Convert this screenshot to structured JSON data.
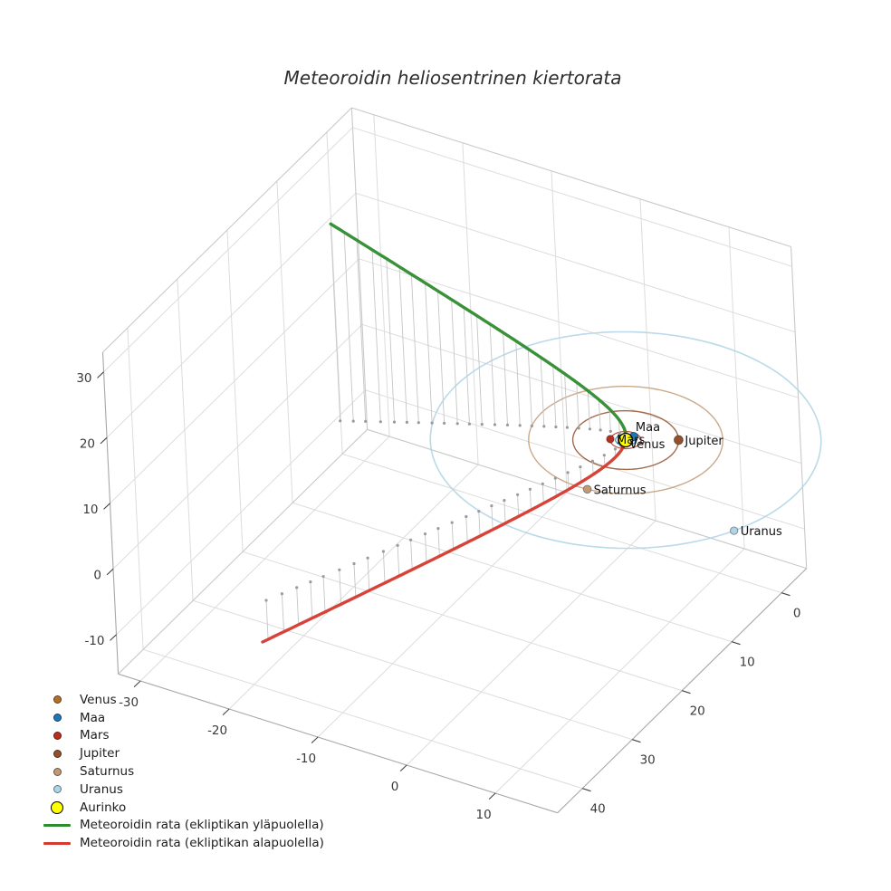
{
  "title": "Meteoroidin heliosentrinen kiertorata",
  "legend": {
    "items": [
      {
        "label": "Venus",
        "type": "dot",
        "color": "#b3702a"
      },
      {
        "label": "Maa",
        "type": "dot",
        "color": "#1f77b4"
      },
      {
        "label": "Mars",
        "type": "dot",
        "color": "#b72f1e"
      },
      {
        "label": "Jupiter",
        "type": "dot",
        "color": "#93502b"
      },
      {
        "label": "Saturnus",
        "type": "dot",
        "color": "#c19a76"
      },
      {
        "label": "Uranus",
        "type": "dot",
        "color": "#aed4e6"
      },
      {
        "label": "Aurinko",
        "type": "sun",
        "color": "#ffff00"
      },
      {
        "label": "Meteoroidin rata (ekliptikan yläpuolella)",
        "type": "line",
        "color": "#2e8b2e"
      },
      {
        "label": "Meteoroidin rata (ekliptikan alapuolella)",
        "type": "line",
        "color": "#d6392e"
      }
    ]
  },
  "chart_data": {
    "type": "scatter",
    "projection": "3d",
    "title": "Meteoroidin heliosentrinen kiertorata",
    "grid": true,
    "legend_position": "lower-left",
    "axes": {
      "x": {
        "ticks": [
          -30,
          -20,
          -10,
          0,
          10
        ],
        "range": [
          -32.5,
          17
        ]
      },
      "y": {
        "ticks": [
          0,
          10,
          20,
          30,
          40
        ],
        "range": [
          -5,
          45
        ]
      },
      "z": {
        "ticks": [
          -10,
          0,
          10,
          20,
          30
        ],
        "range": [
          -16,
          33
        ]
      }
    },
    "sun": {
      "label": "Aurinko",
      "position_au": [
        0,
        0,
        0
      ],
      "color": "#ffff00",
      "edge_color": "#000000"
    },
    "planets": [
      {
        "label": "Venus",
        "orbit_radius_au": 0.72,
        "angle_deg": 80,
        "color": "#b3702a"
      },
      {
        "label": "Maa",
        "orbit_radius_au": 1.0,
        "angle_deg": -67,
        "color": "#1f77b4"
      },
      {
        "label": "Mars",
        "orbit_radius_au": 1.52,
        "angle_deg": 157,
        "color": "#b72f1e"
      },
      {
        "label": "Jupiter",
        "orbit_radius_au": 5.2,
        "angle_deg": -30,
        "color": "#93502b"
      },
      {
        "label": "Saturnus",
        "orbit_radius_au": 9.54,
        "angle_deg": 84,
        "color": "#c19a76"
      },
      {
        "label": "Uranus",
        "orbit_radius_au": 19.2,
        "angle_deg": 27,
        "color": "#aed4e6"
      }
    ],
    "meteoroid": {
      "above_label": "Meteoroidin rata (ekliptikan yläpuolella)",
      "above_color": "#2e8b2e",
      "below_label": "Meteoroidin rata (ekliptikan alapuolella)",
      "below_color": "#d6392e",
      "path_start_au": [
        -26,
        11,
        30
      ],
      "path_control_au": [
        3.58,
        -4.5,
        -2.0
      ],
      "path_end_au": [
        -17,
        43,
        -6
      ],
      "control_weight": 6,
      "perihelion_au": [
        0,
        0,
        0
      ]
    },
    "drop_lines": {
      "to_plane_z": 0,
      "color": "#c6c6c6",
      "dot_color": "#9b9b9b"
    }
  }
}
